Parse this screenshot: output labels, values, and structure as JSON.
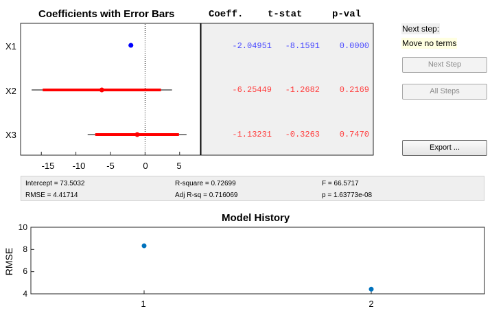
{
  "coef_panel": {
    "title": "Coefficients with Error Bars",
    "headers": [
      "Coeff.",
      "t-stat",
      "p-val"
    ],
    "xticks": [
      "-15",
      "-10",
      "-5",
      "0",
      "5"
    ],
    "rows": [
      {
        "label": "X1",
        "coeff": "-2.04951",
        "tstat": "-8.1591",
        "pval": "0.0000",
        "color": "#4a4aff"
      },
      {
        "label": "X2",
        "coeff": "-6.25449",
        "tstat": "-1.2682",
        "pval": "0.2169",
        "color": "#ff3c3c"
      },
      {
        "label": "X3",
        "coeff": "-1.13231",
        "tstat": "-0.3263",
        "pval": "0.7470",
        "color": "#ff3c3c"
      }
    ],
    "colors": {
      "in_model": "#0000ff",
      "out_model": "#ff0000"
    }
  },
  "next_step": {
    "label": "Next step:",
    "value": "Move no terms"
  },
  "buttons": {
    "next_step": "Next Step",
    "all_steps": "All Steps",
    "export": "Export ..."
  },
  "stats": {
    "intercept": "Intercept = 73.5032",
    "rmse": "RMSE = 4.41714",
    "rsquare": "R-square = 0.72699",
    "adj_rsq": "Adj R-sq = 0.716069",
    "f": "F = 66.5717",
    "p": "p = 1.63773e-08"
  },
  "history": {
    "title": "Model History",
    "ylabel": "RMSE",
    "yticks": [
      "10",
      "8",
      "6",
      "4"
    ],
    "xticks": [
      "1",
      "2"
    ]
  },
  "chart_data": [
    {
      "type": "scatter",
      "title": "Coefficients with Error Bars",
      "categories": [
        "X1",
        "X2",
        "X3"
      ],
      "x": [
        -2.04951,
        -6.25449,
        -1.13231
      ],
      "ci_inner": [
        [
          -2.3,
          -1.8
        ],
        [
          -14.8,
          2.3
        ],
        [
          -7.2,
          4.9
        ]
      ],
      "ci_outer": [
        [
          -2.4,
          -1.7
        ],
        [
          -16.4,
          3.9
        ],
        [
          -8.3,
          6.0
        ]
      ],
      "xlim": [
        -18,
        8
      ],
      "xticks": [
        -15,
        -10,
        -5,
        0,
        5
      ]
    },
    {
      "type": "scatter",
      "title": "Model History",
      "xlabel": "",
      "ylabel": "RMSE",
      "x": [
        1,
        2
      ],
      "y": [
        8.33,
        4.41714
      ],
      "xlim": [
        0,
        2.5
      ],
      "ylim": [
        4,
        10
      ]
    }
  ]
}
